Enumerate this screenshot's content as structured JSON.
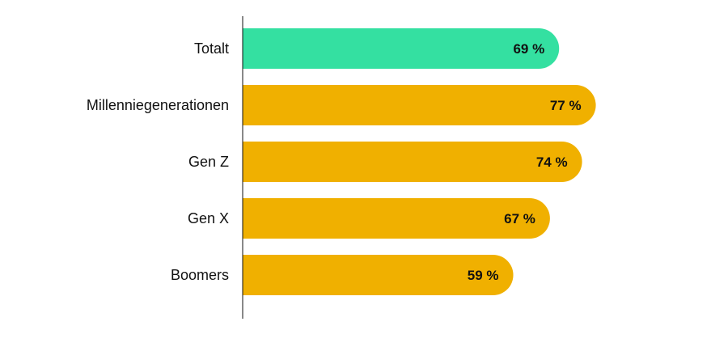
{
  "chart_data": {
    "type": "bar",
    "orientation": "horizontal",
    "categories": [
      "Totalt",
      "Millenniegenerationen",
      "Gen Z",
      "Gen X",
      "Boomers"
    ],
    "values": [
      69,
      77,
      74,
      67,
      59
    ],
    "value_labels": [
      "69 %",
      "77 %",
      "74 %",
      "67 %",
      "59 %"
    ],
    "unit": "%",
    "xlim": [
      0,
      100
    ],
    "grid": false,
    "legend": "none",
    "colors": {
      "highlight": "#34E0A1",
      "default": "#F0B000",
      "axis": "#111111",
      "text": "#111111"
    },
    "highlight_index": 0
  }
}
